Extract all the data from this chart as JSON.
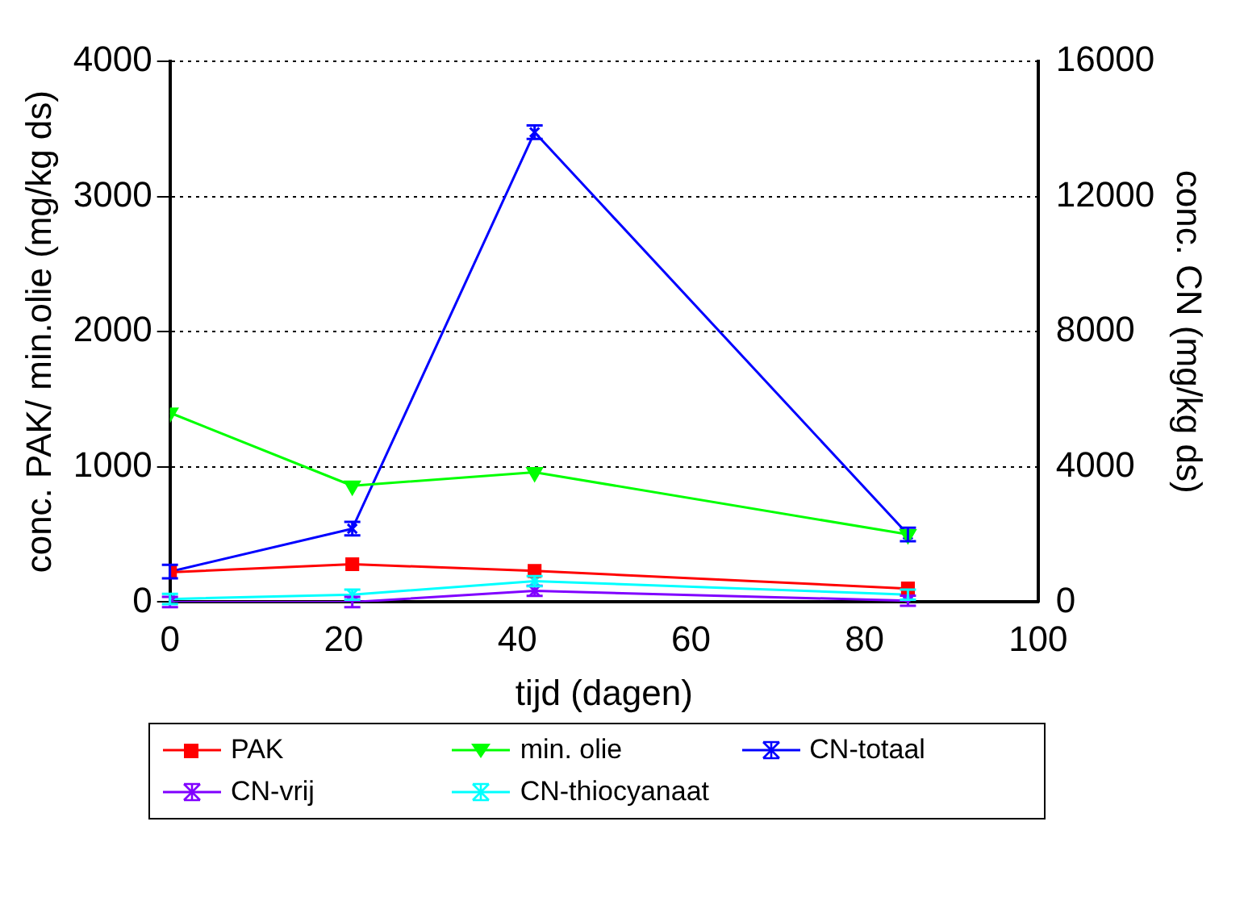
{
  "chart_data": {
    "type": "line",
    "xlabel": "tijd (dagen)",
    "ylabel": "conc. PAK/ min.olie (mg/kg ds)",
    "y2label": "conc. CN (mg/kg ds)",
    "x": [
      0,
      21,
      42,
      85
    ],
    "xlim": [
      0,
      100
    ],
    "xticks": [
      0,
      20,
      40,
      60,
      80,
      100
    ],
    "ylim": [
      0,
      4000
    ],
    "yticks": [
      0,
      1000,
      2000,
      3000,
      4000
    ],
    "y2lim": [
      0,
      16000
    ],
    "y2ticks": [
      0,
      4000,
      8000,
      12000,
      16000
    ],
    "grid": "y",
    "legend": "bottom",
    "series": [
      {
        "name": "PAK",
        "color": "#ff0000",
        "marker": "square",
        "values": [
          220,
          280,
          230,
          100
        ]
      },
      {
        "name": "min. olie",
        "color": "#00ff00",
        "marker": "triangle",
        "values": [
          1400,
          860,
          960,
          500
        ]
      },
      {
        "name": "CN-totaal",
        "color": "#0000ff",
        "marker": "cross",
        "axis": "y2",
        "values": [
          900,
          2170,
          13900,
          2000
        ],
        "errors": [
          200,
          200,
          200,
          200
        ]
      },
      {
        "name": "CN-vrij",
        "color": "#8000ff",
        "marker": "cross",
        "axis": "y2",
        "values": [
          0,
          0,
          330,
          40
        ],
        "errors": [
          150,
          150,
          150,
          150
        ]
      },
      {
        "name": "CN-thiocyanaat",
        "color": "#00ffff",
        "marker": "cross",
        "axis": "y2",
        "values": [
          90,
          220,
          620,
          220
        ],
        "errors": [
          150,
          150,
          150,
          150
        ]
      }
    ]
  }
}
